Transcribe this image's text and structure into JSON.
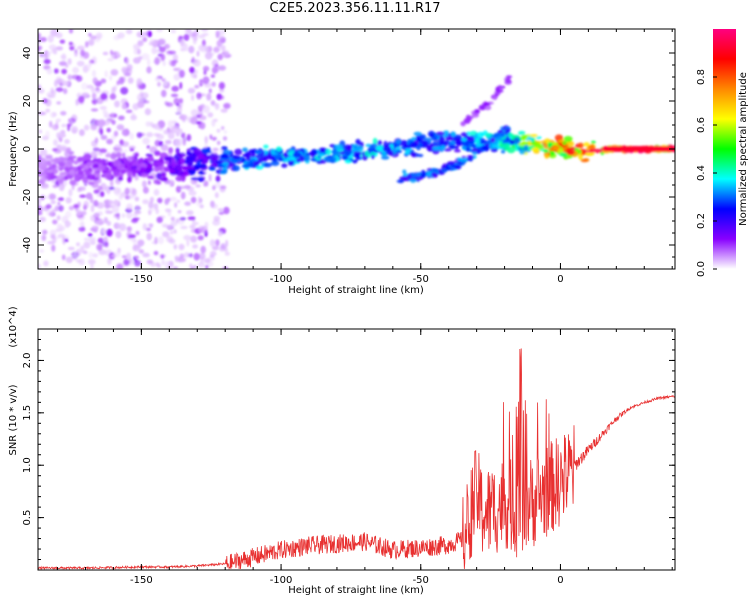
{
  "figure": {
    "title": "C2E5.2023.356.11.11.R17"
  },
  "chart_data": [
    {
      "type": "heatmap",
      "title": "C2E5.2023.356.11.11.R17",
      "xlabel": "Height of straight line (km)",
      "ylabel": "Frequency (Hz)",
      "xlim": [
        -187,
        41
      ],
      "ylim": [
        -50,
        50
      ],
      "x_ticks": [
        -150,
        -100,
        -50,
        0
      ],
      "x_tick_labels": [
        "-150",
        "-100",
        "-50",
        "0"
      ],
      "y_ticks": [
        -40,
        -20,
        0,
        20,
        40
      ],
      "y_tick_labels": [
        "-40",
        "-20",
        "0",
        "20",
        "40"
      ],
      "colorbar": {
        "label": "Normalized spectral amplitude",
        "range": [
          0,
          1
        ],
        "ticks": [
          0.0,
          0.2,
          0.4,
          0.6,
          0.8
        ],
        "tick_labels": [
          "0.0",
          "0.2",
          "0.4",
          "0.6",
          "0.8"
        ],
        "colormap": [
          "#ffffff",
          "#8800ff",
          "#0000ff",
          "#00ffff",
          "#00ff00",
          "#ffff00",
          "#ff8800",
          "#ff0000",
          "#ff0080"
        ]
      },
      "ridge": {
        "x": [
          -185,
          -160,
          -140,
          -120,
          -100,
          -80,
          -60,
          -50,
          -40,
          -30,
          -20,
          -10,
          0,
          10,
          20,
          30,
          40
        ],
        "y": [
          -8,
          -8,
          -7,
          -5,
          -3,
          -2,
          0,
          2,
          3,
          4,
          3,
          2,
          0,
          -1,
          0,
          0,
          0
        ],
        "amplitude": [
          0.08,
          0.12,
          0.15,
          0.3,
          0.35,
          0.35,
          0.35,
          0.3,
          0.3,
          0.35,
          0.4,
          0.6,
          0.8,
          0.85,
          0.9,
          0.92,
          0.92
        ]
      },
      "secondary_ridge": {
        "x": [
          -58,
          -45,
          -35,
          -25,
          -18
        ],
        "y": [
          -12,
          -10,
          -5,
          2,
          10
        ]
      },
      "faint_streak": {
        "x": [
          -35,
          -25,
          -18
        ],
        "y": [
          10,
          20,
          30
        ]
      }
    },
    {
      "type": "line",
      "xlabel": "Height of straight line (km)",
      "ylabel": "SNR (10 * v/v)",
      "y_multiplier": "(x10^4)",
      "xlim": [
        -187,
        41
      ],
      "ylim": [
        0,
        2.3
      ],
      "x_ticks": [
        -150,
        -100,
        -50,
        0
      ],
      "x_tick_labels": [
        "-150",
        "-100",
        "-50",
        "0"
      ],
      "y_ticks": [
        0.5,
        1.0,
        1.5,
        2.0
      ],
      "y_tick_labels": [
        "0.5",
        "1.0",
        "1.5",
        "2.0"
      ],
      "series": [
        {
          "color": "#e83030",
          "x": [
            -187,
            -170,
            -150,
            -140,
            -130,
            -120,
            -110,
            -100,
            -90,
            -80,
            -70,
            -60,
            -50,
            -40,
            -35,
            -32,
            -30,
            -28,
            -25,
            -20,
            -15,
            -10,
            -5,
            0,
            5,
            10,
            15,
            20,
            25,
            30,
            35,
            41
          ],
          "y": [
            0.02,
            0.02,
            0.03,
            0.03,
            0.04,
            0.06,
            0.13,
            0.2,
            0.24,
            0.26,
            0.28,
            0.2,
            0.22,
            0.25,
            0.3,
            0.6,
            0.8,
            0.6,
            0.6,
            0.7,
            0.6,
            0.7,
            0.8,
            0.9,
            1.0,
            1.15,
            1.3,
            1.45,
            1.55,
            1.6,
            1.64,
            1.66
          ]
        }
      ]
    }
  ]
}
